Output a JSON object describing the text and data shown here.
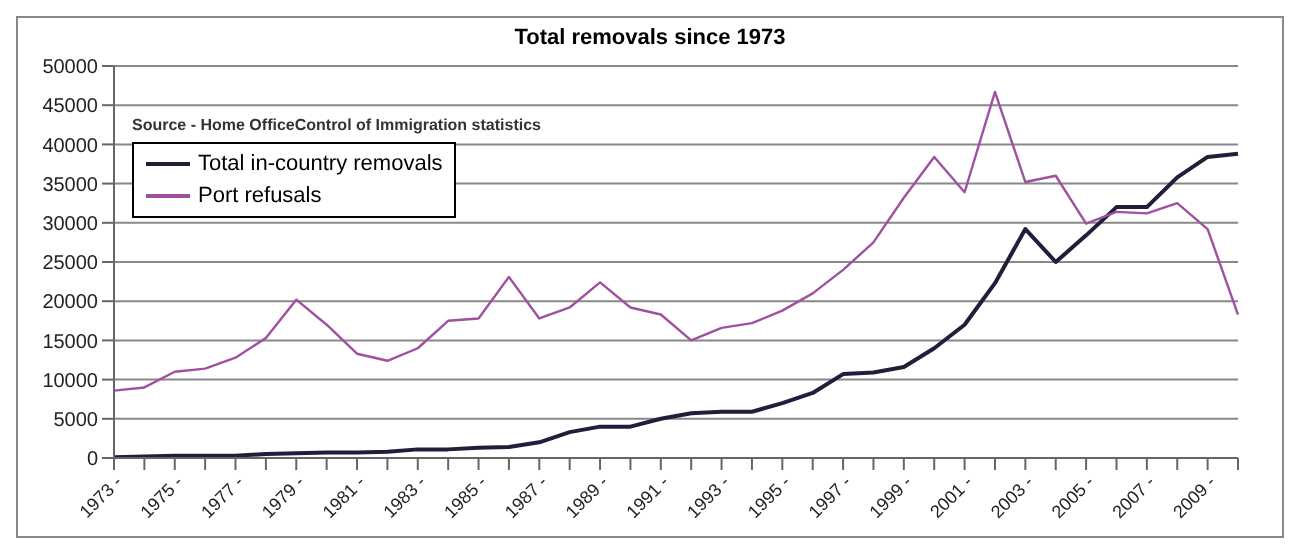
{
  "chart_data": {
    "type": "line",
    "title": "Total removals since 1973",
    "annotations": [
      "Source -  Home OfficeControl of Immigration statistics"
    ],
    "categories": [
      "1973 -",
      null,
      "1975 -",
      null,
      "1977 -",
      null,
      "1979 -",
      null,
      "1981 -",
      null,
      "1983 -",
      null,
      "1985 -",
      null,
      "1987 -",
      null,
      "1989 -",
      null,
      "1991 -",
      null,
      "1993 -",
      null,
      "1995 -",
      null,
      "1997 -",
      null,
      "1999 -",
      null,
      "2001 -",
      null,
      "2003 -",
      null,
      "2005 -",
      null,
      "2007 -",
      null,
      "2009 -",
      null
    ],
    "series": [
      {
        "name": "Total in-country removals",
        "color": "#1f1f3a",
        "values": [
          100,
          200,
          300,
          300,
          300,
          500,
          600,
          700,
          700,
          800,
          1100,
          1100,
          1300,
          1400,
          2000,
          3300,
          4000,
          4000,
          5000,
          5700,
          5900,
          5900,
          7000,
          8300,
          10700,
          10900,
          11600,
          14000,
          17000,
          22300,
          29200,
          25000,
          28400,
          32000,
          32000,
          35800,
          38400,
          38800
        ]
      },
      {
        "name": "Port refusals",
        "color": "#a050a0",
        "values": [
          8600,
          9000,
          11000,
          11400,
          12800,
          15300,
          20200,
          17000,
          13300,
          12400,
          14000,
          17500,
          17800,
          23100,
          17800,
          19200,
          22400,
          19200,
          18300,
          15000,
          16600,
          17200,
          18800,
          21000,
          24000,
          27500,
          33200,
          38400,
          33900,
          46700,
          35200,
          36000,
          29900,
          31400,
          31200,
          32500,
          29200,
          18300
        ]
      }
    ],
    "ylim": [
      0,
      50000
    ],
    "yticks": [
      0,
      5000,
      10000,
      15000,
      20000,
      25000,
      30000,
      35000,
      40000,
      45000,
      50000
    ],
    "grid": "y",
    "legend": "top left",
    "marker": "none",
    "line_style": "solid"
  }
}
